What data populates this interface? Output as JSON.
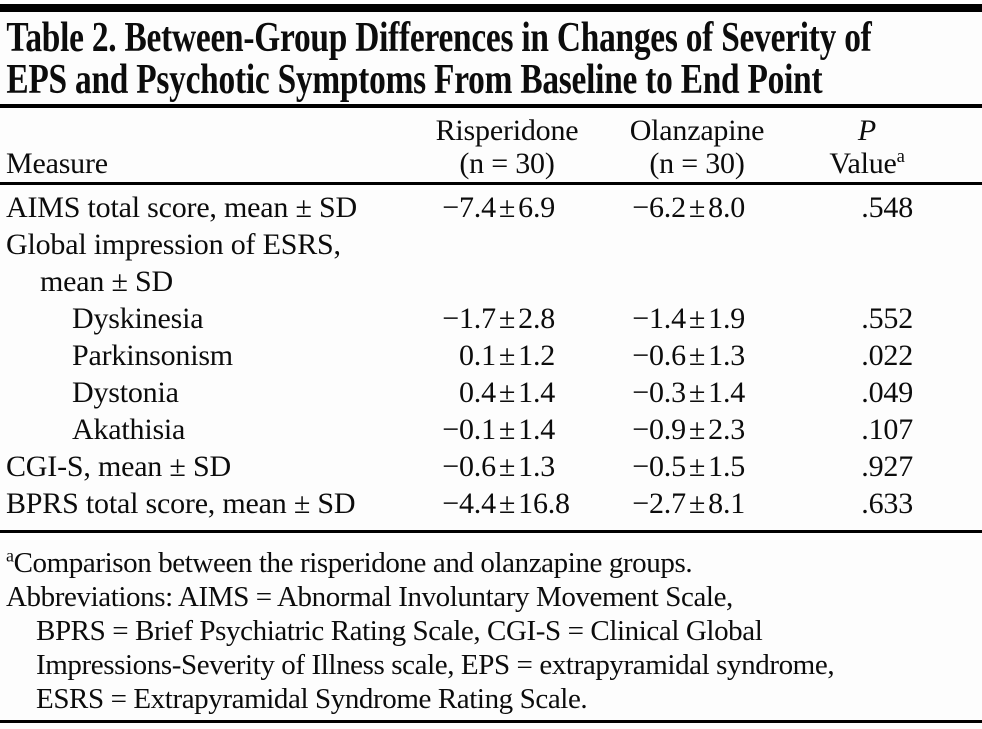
{
  "colors": {
    "text": "#0c0c0c",
    "rule": "#000000",
    "background": "#fdfdfd"
  },
  "title": {
    "line1": "Table 2. Between-Group Differences in Changes of Severity of",
    "line2": "EPS and Psychotic Symptoms From Baseline to End Point"
  },
  "table": {
    "pm_sign": "±",
    "header": {
      "measure": "Measure",
      "risperidone": {
        "name": "Risperidone",
        "n": "(n = 30)"
      },
      "olanzapine": {
        "name": "Olanzapine",
        "n": "(n = 30)"
      },
      "p": {
        "name": "P",
        "label": "Value",
        "sup": "a"
      }
    },
    "rows": [
      {
        "label": "AIMS total score, mean ± SD",
        "risperidone": {
          "mean": "−7.4",
          "sd": "6.9"
        },
        "olanzapine": {
          "mean": "−6.2",
          "sd": "8.0"
        },
        "p": ".548"
      },
      {
        "label": "Global impression of ESRS,"
      },
      {
        "label": "mean ± SD"
      },
      {
        "label": "Dyskinesia",
        "risperidone": {
          "mean": "−1.7",
          "sd": "2.8"
        },
        "olanzapine": {
          "mean": "−1.4",
          "sd": "1.9"
        },
        "p": ".552"
      },
      {
        "label": "Parkinsonism",
        "risperidone": {
          "mean": "0.1",
          "sd": "1.2"
        },
        "olanzapine": {
          "mean": "−0.6",
          "sd": "1.3"
        },
        "p": ".022"
      },
      {
        "label": "Dystonia",
        "risperidone": {
          "mean": "0.4",
          "sd": "1.4"
        },
        "olanzapine": {
          "mean": "−0.3",
          "sd": "1.4"
        },
        "p": ".049"
      },
      {
        "label": "Akathisia",
        "risperidone": {
          "mean": "−0.1",
          "sd": "1.4"
        },
        "olanzapine": {
          "mean": "−0.9",
          "sd": "2.3"
        },
        "p": ".107"
      },
      {
        "label": "CGI-S, mean ± SD",
        "risperidone": {
          "mean": "−0.6",
          "sd": "1.3"
        },
        "olanzapine": {
          "mean": "−0.5",
          "sd": "1.5"
        },
        "p": ".927"
      },
      {
        "label": "BPRS total score, mean ± SD",
        "risperidone": {
          "mean": "−4.4",
          "sd": "16.8"
        },
        "olanzapine": {
          "mean": "−2.7",
          "sd": "8.1"
        },
        "p": ".633"
      }
    ]
  },
  "footnotes": {
    "note_a": {
      "marker": "a",
      "text": "Comparison between the risperidone and olanzapine groups."
    },
    "abbreviations": {
      "line1": "Abbreviations: AIMS = Abnormal Involuntary Movement Scale,",
      "line2": "BPRS = Brief Psychiatric Rating Scale, CGI-S = Clinical Global",
      "line3": "Impressions-Severity of Illness scale, EPS = extrapyramidal syndrome,",
      "line4": "ESRS = Extrapyramidal Syndrome Rating Scale."
    }
  }
}
